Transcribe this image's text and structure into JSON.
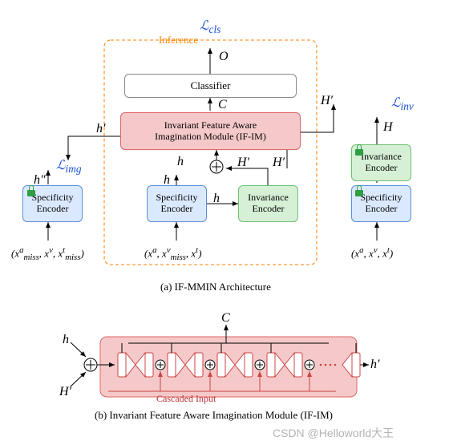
{
  "colors": {
    "spec_bg": "#dbe9ff",
    "spec_border": "#5b8fd6",
    "inv_bg": "#d6f0d6",
    "inv_border": "#6fbf73",
    "ifim_bg": "#f5c9c9",
    "ifim_border": "#d66",
    "cls_bg": "#ffffff",
    "cls_border": "#888",
    "infer_border": "#ff9933",
    "loss_color": "#1a4fd6",
    "detail_bg": "#f5c9c9"
  },
  "fonts": {
    "node": 13,
    "small": 12,
    "caption": 13,
    "math": 14,
    "loss": 14,
    "inference": 13
  },
  "top": {
    "inference_label": "Inference",
    "loss_cls": "ℒ",
    "loss_cls_sub": "cls",
    "loss_img": "ℒ",
    "loss_img_sub": "img",
    "loss_inv": "ℒ",
    "loss_inv_sub": "inv",
    "classifier": "Classifier",
    "ifim": "Invariant Feature Aware\nImagination Module (IF-IM)",
    "spec_enc": "Specificity\nEncoder",
    "inv_enc": "Invariance\nEncoder",
    "O": "O",
    "C": "C",
    "H": "H",
    "Hp": "H′",
    "h": "h",
    "hp": "h′",
    "hpp": "h″",
    "x_left": "(x",
    "x_left_parts": [
      "a",
      "miss",
      "v",
      "t",
      "miss"
    ],
    "x_mid_parts": [
      "a",
      "v",
      "miss",
      "t"
    ],
    "x_right_parts": [
      "a",
      "v",
      "t"
    ],
    "caption": "(a) IF-MMIN Architecture"
  },
  "bottom": {
    "h": "h",
    "Hp": "H′",
    "C": "C",
    "hp": "h′",
    "casc": "Cascaded Input",
    "caption": "(b) Invariant Feature Aware Imagination Module (IF-IM)",
    "n_blocks": 4
  },
  "watermark": "CSDN @Helloworld大王"
}
